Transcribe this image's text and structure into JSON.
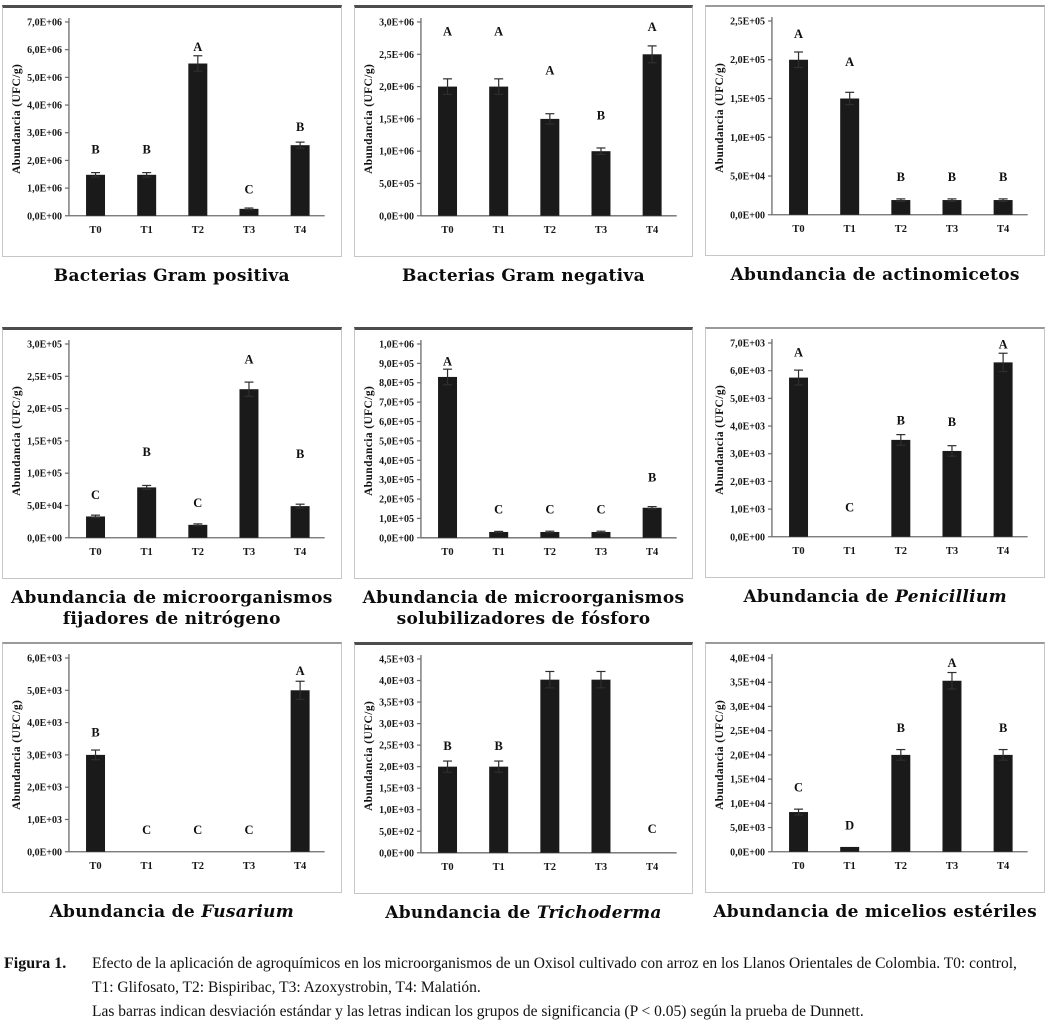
{
  "figure": {
    "caption": {
      "label": "Figura 1.",
      "paragraph1": "Efecto de la aplicación de agroquímicos en los microorganismos de un Oxisol cultivado con arroz en los Llanos Orientales de  Colombia.  T0: control, T1: Glifosato, T2: Bispiribac, T3: Azoxystrobin, T4: Malatión.",
      "paragraph2": "Las barras indican desviación estándar y las letras indican los grupos de significancia (P < 0.05) según la prueba de Dunnett."
    },
    "colors": {
      "bar": "#1a1a1a",
      "axis": "#6b6b6b",
      "error_bar": "#2e2e2e"
    }
  },
  "chart_data": [
    {
      "type": "bar",
      "name": "bacterias-gram-positiva",
      "title_lines": [
        [
          {
            "text": "Bacterias Gram positiva",
            "italic": false
          }
        ]
      ],
      "ylabel": "Abundancia (UFC/g)",
      "ylim": [
        0,
        7000000
      ],
      "yticks": [
        {
          "label": "0,0E+00",
          "value": 0
        },
        {
          "label": "1,0E+06",
          "value": 1000000
        },
        {
          "label": "2,0E+06",
          "value": 2000000
        },
        {
          "label": "3,0E+06",
          "value": 3000000
        },
        {
          "label": "4,0E+06",
          "value": 4000000
        },
        {
          "label": "5,0E+06",
          "value": 5000000
        },
        {
          "label": "6,0E+06",
          "value": 6000000
        },
        {
          "label": "7,0E+06",
          "value": 7000000
        }
      ],
      "categories": [
        "T0",
        "T1",
        "T2",
        "T3",
        "T4"
      ],
      "values": [
        1480000,
        1480000,
        5500000,
        250000,
        2550000
      ],
      "errors": [
        80000,
        80000,
        280000,
        30000,
        110000
      ],
      "letters": [
        "B",
        "B",
        "A",
        "C",
        "B"
      ],
      "letter_y": [
        2400000,
        2400000,
        6100000,
        950000,
        3200000
      ]
    },
    {
      "type": "bar",
      "name": "bacterias-gram-negativa",
      "title_lines": [
        [
          {
            "text": "Bacterias Gram negativa",
            "italic": false
          }
        ]
      ],
      "ylabel": "Abundancia (UFC/g)",
      "ylim": [
        0,
        3000000
      ],
      "yticks": [
        {
          "label": "0,0E+00",
          "value": 0
        },
        {
          "label": "5,0E+05",
          "value": 500000
        },
        {
          "label": "1,0E+06",
          "value": 1000000
        },
        {
          "label": "1,5E+06",
          "value": 1500000
        },
        {
          "label": "2,0E+06",
          "value": 2000000
        },
        {
          "label": "2,5E+06",
          "value": 2500000
        },
        {
          "label": "3,0E+06",
          "value": 3000000
        }
      ],
      "categories": [
        "T0",
        "T1",
        "T2",
        "T3",
        "T4"
      ],
      "values": [
        2000000,
        2000000,
        1500000,
        1000000,
        2500000
      ],
      "errors": [
        120000,
        120000,
        80000,
        50000,
        130000
      ],
      "letters": [
        "A",
        "A",
        "A",
        "B",
        "A"
      ],
      "letter_y": [
        2850000,
        2850000,
        2250000,
        1550000,
        2920000
      ]
    },
    {
      "type": "bar",
      "name": "actinomicetos",
      "title_lines": [
        [
          {
            "text": "Abundancia de actinomicetos",
            "italic": false
          }
        ]
      ],
      "ylabel": "Abundancia (UFC/g)",
      "ylim": [
        0,
        250000
      ],
      "yticks": [
        {
          "label": "0,0E+00",
          "value": 0
        },
        {
          "label": "5,0E+04",
          "value": 50000
        },
        {
          "label": "1,0E+05",
          "value": 100000
        },
        {
          "label": "1,5E+05",
          "value": 150000
        },
        {
          "label": "2,0E+05",
          "value": 200000
        },
        {
          "label": "2,5E+05",
          "value": 250000
        }
      ],
      "categories": [
        "T0",
        "T1",
        "T2",
        "T3",
        "T4"
      ],
      "values": [
        200000,
        150000,
        19000,
        19000,
        19000
      ],
      "errors": [
        10000,
        8000,
        1500,
        1500,
        1500
      ],
      "letters": [
        "A",
        "A",
        "B",
        "B",
        "B"
      ],
      "letter_y": [
        233000,
        197000,
        49000,
        49000,
        49000
      ]
    },
    {
      "type": "bar",
      "name": "fijadores-de-nitrogeno",
      "title_lines": [
        [
          {
            "text": "Abundancia de microorganismos",
            "italic": false
          }
        ],
        [
          {
            "text": "fijadores de nitrógeno",
            "italic": false
          }
        ]
      ],
      "ylabel": "Abundancia (UFC/g)",
      "ylim": [
        0,
        300000
      ],
      "yticks": [
        {
          "label": "0,0E+00",
          "value": 0
        },
        {
          "label": "5,0E+04",
          "value": 50000
        },
        {
          "label": "1,0E+05",
          "value": 100000
        },
        {
          "label": "1,5E+05",
          "value": 150000
        },
        {
          "label": "2,0E+05",
          "value": 200000
        },
        {
          "label": "2,5E+05",
          "value": 250000
        },
        {
          "label": "3,0E+05",
          "value": 300000
        }
      ],
      "categories": [
        "T0",
        "T1",
        "T2",
        "T3",
        "T4"
      ],
      "values": [
        33000,
        78000,
        20000,
        230000,
        49000
      ],
      "errors": [
        2000,
        3000,
        1500,
        11000,
        3000
      ],
      "letters": [
        "C",
        "B",
        "C",
        "A",
        "B"
      ],
      "letter_y": [
        66000,
        133000,
        54000,
        276000,
        130000
      ]
    },
    {
      "type": "bar",
      "name": "solubilizadores-de-fosforo",
      "title_lines": [
        [
          {
            "text": "Abundancia de microorganismos",
            "italic": false
          }
        ],
        [
          {
            "text": "solubilizadores de fósforo",
            "italic": false
          }
        ]
      ],
      "ylabel": "Abundancia (UFC/g)",
      "ylim": [
        0,
        1000000
      ],
      "yticks": [
        {
          "label": "0,0E+00",
          "value": 0
        },
        {
          "label": "1,0E+05",
          "value": 100000
        },
        {
          "label": "2,0E+05",
          "value": 200000
        },
        {
          "label": "3,0E+05",
          "value": 300000
        },
        {
          "label": "4,0E+05",
          "value": 400000
        },
        {
          "label": "5,0E+05",
          "value": 500000
        },
        {
          "label": "6,0E+05",
          "value": 600000
        },
        {
          "label": "7,0E+05",
          "value": 700000
        },
        {
          "label": "8,0E+05",
          "value": 800000
        },
        {
          "label": "9,0E+05",
          "value": 900000
        },
        {
          "label": "1,0E+06",
          "value": 1000000
        }
      ],
      "categories": [
        "T0",
        "T1",
        "T2",
        "T3",
        "T4"
      ],
      "values": [
        830000,
        30000,
        30000,
        30000,
        155000
      ],
      "errors": [
        40000,
        3000,
        4000,
        4000,
        6000
      ],
      "letters": [
        "A",
        "C",
        "C",
        "C",
        "B"
      ],
      "letter_y": [
        910000,
        145000,
        145000,
        145000,
        310000
      ]
    },
    {
      "type": "bar",
      "name": "penicillium",
      "title_lines": [
        [
          {
            "text": "Abundancia de  ",
            "italic": false
          },
          {
            "text": "Penicillium",
            "italic": true
          }
        ]
      ],
      "ylabel": "Abundancia (UFC/g)",
      "ylim": [
        0,
        7000
      ],
      "yticks": [
        {
          "label": "0,0E+00",
          "value": 0
        },
        {
          "label": "1,0E+03",
          "value": 1000
        },
        {
          "label": "2,0E+03",
          "value": 2000
        },
        {
          "label": "3,0E+03",
          "value": 3000
        },
        {
          "label": "4,0E+03",
          "value": 4000
        },
        {
          "label": "5,0E+03",
          "value": 5000
        },
        {
          "label": "6,0E+03",
          "value": 6000
        },
        {
          "label": "7,0E+03",
          "value": 7000
        }
      ],
      "categories": [
        "T0",
        "T1",
        "T2",
        "T3",
        "T4"
      ],
      "values": [
        5750,
        0,
        3500,
        3100,
        6300
      ],
      "errors": [
        270,
        0,
        190,
        190,
        330
      ],
      "letters": [
        "A",
        "C",
        "B",
        "B",
        "A"
      ],
      "letter_y": [
        6650,
        1050,
        4200,
        4150,
        6950
      ]
    },
    {
      "type": "bar",
      "name": "fusarium",
      "title_lines": [
        [
          {
            "text": "Abundancia de ",
            "italic": false
          },
          {
            "text": "Fusarium",
            "italic": true
          }
        ]
      ],
      "ylabel": "Abundancia (UFC/g)",
      "ylim": [
        0,
        6000
      ],
      "yticks": [
        {
          "label": "0,0E+00",
          "value": 0
        },
        {
          "label": "1,0E+03",
          "value": 1000
        },
        {
          "label": "2,0E+03",
          "value": 2000
        },
        {
          "label": "3,0E+03",
          "value": 3000
        },
        {
          "label": "4,0E+03",
          "value": 4000
        },
        {
          "label": "5,0E+03",
          "value": 5000
        },
        {
          "label": "6,0E+03",
          "value": 6000
        }
      ],
      "categories": [
        "T0",
        "T1",
        "T2",
        "T3",
        "T4"
      ],
      "values": [
        3000,
        0,
        0,
        0,
        5000
      ],
      "errors": [
        150,
        0,
        0,
        0,
        280
      ],
      "letters": [
        "B",
        "C",
        "C",
        "C",
        "A"
      ],
      "letter_y": [
        3700,
        680,
        680,
        680,
        5600
      ]
    },
    {
      "type": "bar",
      "name": "trichoderma",
      "title_lines": [
        [
          {
            "text": "Abundancia de ",
            "italic": false
          },
          {
            "text": "Trichoderma",
            "italic": true
          }
        ]
      ],
      "ylabel": "Abundancia (UFC/g)",
      "ylim": [
        0,
        4500
      ],
      "yticks": [
        {
          "label": "0,0E+00",
          "value": 0
        },
        {
          "label": "5,0E+02",
          "value": 500
        },
        {
          "label": "1,0E+03",
          "value": 1000
        },
        {
          "label": "1,5E+03",
          "value": 1500
        },
        {
          "label": "2,0E+03",
          "value": 2000
        },
        {
          "label": "2,5E+03",
          "value": 2500
        },
        {
          "label": "3,0E+03",
          "value": 3000
        },
        {
          "label": "3,5E+03",
          "value": 3500
        },
        {
          "label": "4,0E+03",
          "value": 4000
        },
        {
          "label": "4,5E+03",
          "value": 4500
        }
      ],
      "categories": [
        "T0",
        "T1",
        "T2",
        "T3",
        "T4"
      ],
      "values": [
        2000,
        2000,
        4020,
        4020,
        0
      ],
      "errors": [
        130,
        130,
        190,
        190,
        0
      ],
      "letters": [
        "B",
        "B",
        null,
        null,
        "C"
      ],
      "letter_y": [
        2480,
        2480,
        null,
        null,
        550
      ]
    },
    {
      "type": "bar",
      "name": "micelios-esteriles",
      "title_lines": [
        [
          {
            "text": "Abundancia de  micelios estériles",
            "italic": false
          }
        ]
      ],
      "ylabel": "Abundancia (UFC/g)",
      "ylim": [
        0,
        40000
      ],
      "yticks": [
        {
          "label": "0,0E+00",
          "value": 0
        },
        {
          "label": "5,0E+03",
          "value": 5000
        },
        {
          "label": "1,0E+04",
          "value": 10000
        },
        {
          "label": "1,5E+04",
          "value": 15000
        },
        {
          "label": "2,0E+04",
          "value": 20000
        },
        {
          "label": "2,5E+04",
          "value": 25000
        },
        {
          "label": "3,0E+04",
          "value": 30000
        },
        {
          "label": "3,5E+04",
          "value": 35000
        },
        {
          "label": "4,0E+04",
          "value": 40000
        }
      ],
      "categories": [
        "T0",
        "T1",
        "T2",
        "T3",
        "T4"
      ],
      "values": [
        8200,
        1000,
        20000,
        35300,
        20000
      ],
      "errors": [
        600,
        0,
        1100,
        1700,
        1100
      ],
      "letters": [
        "C",
        "D",
        "B",
        "A",
        "B"
      ],
      "letter_y": [
        13300,
        5400,
        25500,
        39000,
        25500
      ]
    }
  ]
}
